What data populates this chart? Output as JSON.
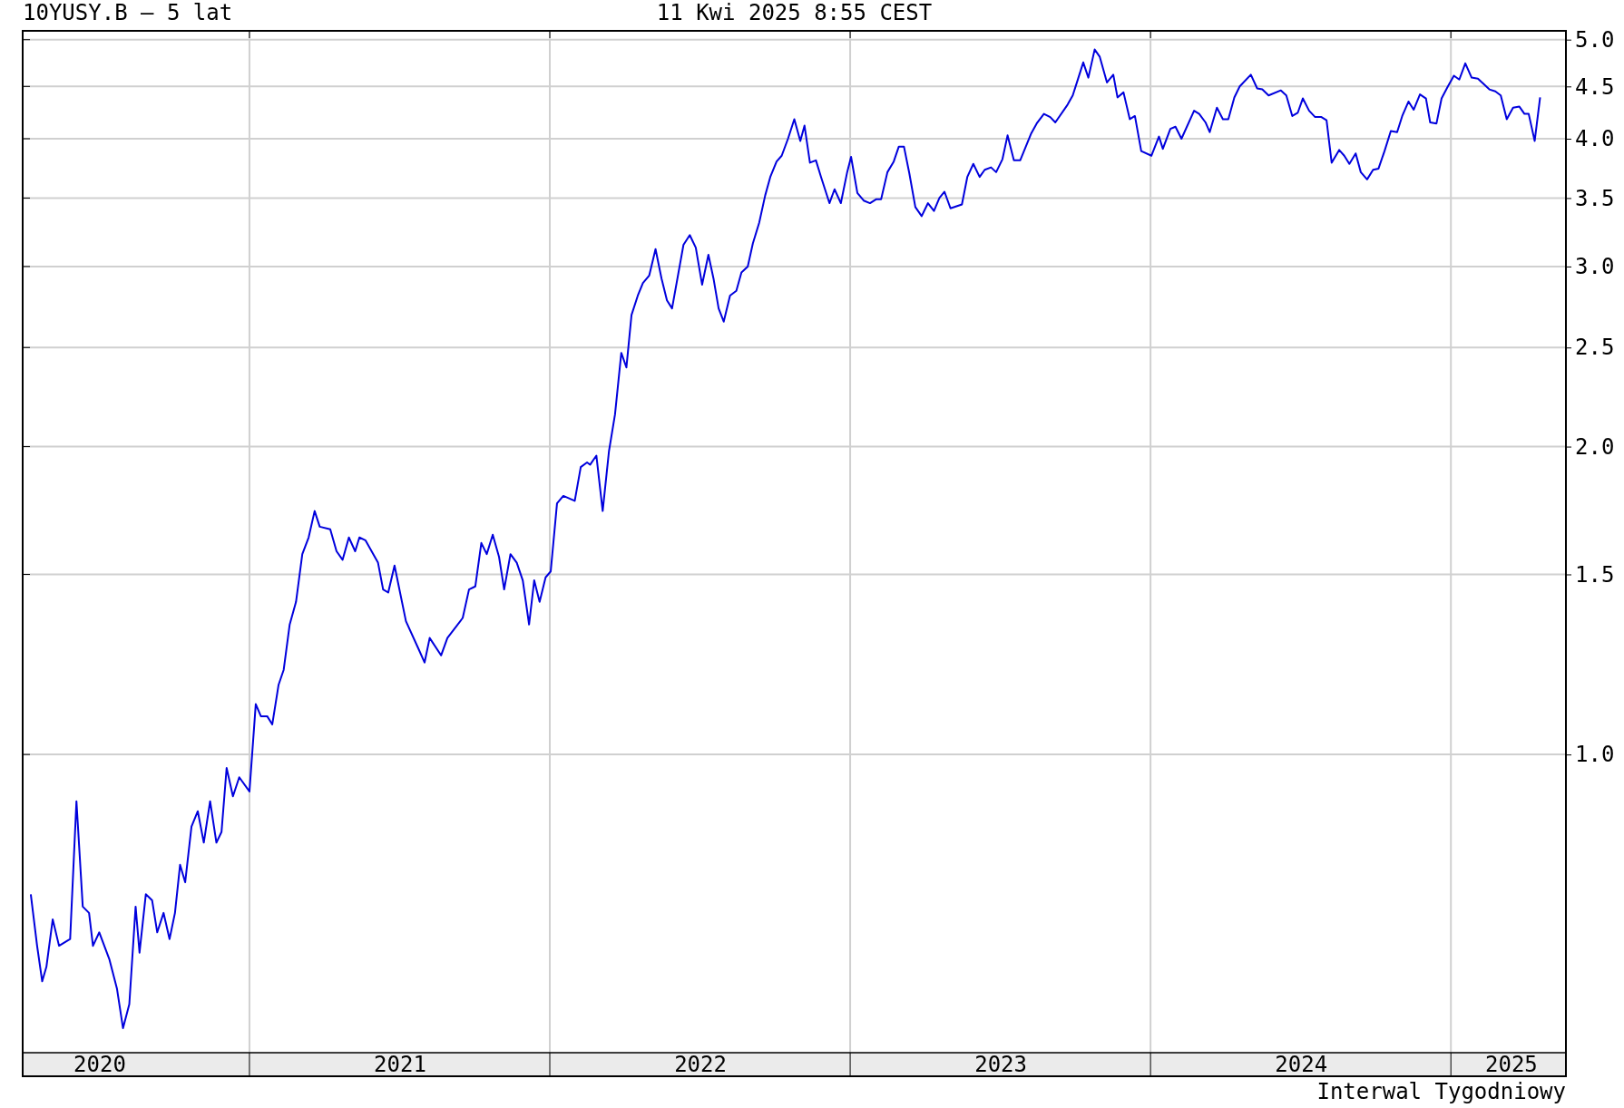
{
  "chart_data": {
    "type": "line",
    "title": "10YUSY.B – 5 lat",
    "annotations": [
      "11 Kwi 2025 8:55 CEST",
      "Interwal Tygodniowy"
    ],
    "log": true,
    "grid": true,
    "xlim": [
      2020.245,
      2025.383
    ],
    "ylim": [
      0.511,
      5.1
    ],
    "xticks": [
      {
        "value": 2020.5,
        "label": "2020"
      },
      {
        "value": 2021,
        "label": null
      },
      {
        "value": 2021.5,
        "label": "2021"
      },
      {
        "value": 2022,
        "label": null
      },
      {
        "value": 2022.5,
        "label": "2022"
      },
      {
        "value": 2023,
        "label": null
      },
      {
        "value": 2023.5,
        "label": "2023"
      },
      {
        "value": 2024,
        "label": null
      },
      {
        "value": 2024.5,
        "label": "2024"
      },
      {
        "value": 2025,
        "label": null
      },
      {
        "value": 2025.2,
        "label": "2025"
      }
    ],
    "yticks": [
      {
        "value": 1,
        "label": "1.0"
      },
      {
        "value": 1.5,
        "label": "1.5"
      },
      {
        "value": 2,
        "label": "2.0"
      },
      {
        "value": 2.5,
        "label": "2.5"
      },
      {
        "value": 3,
        "label": "3.0"
      },
      {
        "value": 3.5,
        "label": "3.5"
      },
      {
        "value": 4,
        "label": "4.0"
      },
      {
        "value": 4.5,
        "label": "4.5"
      },
      {
        "value": 5,
        "label": "5.0"
      }
    ],
    "series": [
      {
        "color": "#0000dd",
        "x": [
          2020.272,
          2020.293,
          2020.31,
          2020.324,
          2020.345,
          2020.366,
          2020.403,
          2020.424,
          2020.445,
          2020.466,
          2020.479,
          2020.5,
          2020.534,
          2020.559,
          2020.579,
          2020.6,
          2020.621,
          2020.634,
          2020.655,
          2020.676,
          2020.693,
          2020.714,
          2020.734,
          2020.752,
          2020.769,
          2020.786,
          2020.807,
          2020.828,
          2020.848,
          2020.869,
          2020.89,
          2020.907,
          2020.924,
          2020.945,
          2020.966,
          2021.0,
          2021.021,
          2021.038,
          2021.059,
          2021.076,
          2021.097,
          2021.114,
          2021.134,
          2021.155,
          2021.176,
          2021.197,
          2021.217,
          2021.234,
          2021.269,
          2021.29,
          2021.31,
          2021.331,
          2021.352,
          2021.366,
          2021.386,
          2021.428,
          2021.445,
          2021.462,
          2021.483,
          2021.521,
          2021.562,
          2021.583,
          2021.6,
          2021.638,
          2021.659,
          2021.71,
          2021.731,
          2021.752,
          2021.772,
          2021.79,
          2021.81,
          2021.831,
          2021.848,
          2021.869,
          2021.89,
          2021.91,
          2021.931,
          2021.948,
          2021.966,
          2021.986,
          2022.003,
          2022.024,
          2022.045,
          2022.083,
          2022.103,
          2022.124,
          2022.134,
          2022.155,
          2022.176,
          2022.197,
          2022.217,
          2022.238,
          2022.255,
          2022.272,
          2022.293,
          2022.31,
          2022.331,
          2022.352,
          2022.372,
          2022.39,
          2022.407,
          2022.445,
          2022.466,
          2022.486,
          2022.507,
          2022.528,
          2022.545,
          2022.562,
          2022.579,
          2022.6,
          2022.621,
          2022.638,
          2022.659,
          2022.676,
          2022.697,
          2022.717,
          2022.734,
          2022.755,
          2022.772,
          2022.793,
          2022.814,
          2022.834,
          2022.848,
          2022.866,
          2022.886,
          2022.903,
          2022.931,
          2022.948,
          2022.969,
          2022.99,
          2023.003,
          2023.024,
          2023.045,
          2023.066,
          2023.086,
          2023.103,
          2023.124,
          2023.145,
          2023.162,
          2023.179,
          2023.197,
          2023.217,
          2023.238,
          2023.259,
          2023.279,
          2023.297,
          2023.314,
          2023.334,
          2023.372,
          2023.39,
          2023.41,
          2023.431,
          2023.448,
          2023.469,
          2023.486,
          2023.507,
          2023.524,
          2023.545,
          2023.566,
          2023.603,
          2023.621,
          2023.645,
          2023.666,
          2023.683,
          2023.724,
          2023.741,
          2023.759,
          2023.776,
          2023.793,
          2023.814,
          2023.831,
          2023.855,
          2023.876,
          2023.89,
          2023.91,
          2023.931,
          2023.948,
          2023.969,
          2024.003,
          2024.028,
          2024.041,
          2024.066,
          2024.083,
          2024.103,
          2024.145,
          2024.162,
          2024.183,
          2024.197,
          2024.221,
          2024.241,
          2024.259,
          2024.279,
          2024.297,
          2024.334,
          2024.355,
          2024.372,
          2024.393,
          2024.434,
          2024.452,
          2024.472,
          2024.49,
          2024.507,
          2024.528,
          2024.548,
          2024.569,
          2024.586,
          2024.603,
          2024.628,
          2024.645,
          2024.662,
          2024.683,
          2024.7,
          2024.721,
          2024.741,
          2024.759,
          2024.779,
          2024.8,
          2024.821,
          2024.838,
          2024.859,
          2024.876,
          2024.897,
          2024.917,
          2024.931,
          2024.952,
          2024.969,
          2024.99,
          2025.01,
          2025.028,
          2025.048,
          2025.069,
          2025.09,
          2025.128,
          2025.148,
          2025.166,
          2025.186,
          2025.207,
          2025.228,
          2025.245,
          2025.259,
          2025.279,
          2025.297
        ],
        "values": [
          0.73,
          0.65,
          0.6,
          0.62,
          0.69,
          0.65,
          0.66,
          0.9,
          0.71,
          0.7,
          0.65,
          0.67,
          0.63,
          0.59,
          0.54,
          0.57,
          0.71,
          0.64,
          0.73,
          0.72,
          0.67,
          0.7,
          0.66,
          0.7,
          0.78,
          0.75,
          0.85,
          0.88,
          0.82,
          0.9,
          0.82,
          0.84,
          0.97,
          0.91,
          0.95,
          0.92,
          1.12,
          1.09,
          1.09,
          1.07,
          1.17,
          1.21,
          1.34,
          1.41,
          1.57,
          1.63,
          1.73,
          1.67,
          1.66,
          1.58,
          1.55,
          1.63,
          1.58,
          1.63,
          1.62,
          1.54,
          1.45,
          1.44,
          1.53,
          1.35,
          1.27,
          1.23,
          1.3,
          1.25,
          1.3,
          1.36,
          1.45,
          1.46,
          1.61,
          1.57,
          1.64,
          1.56,
          1.45,
          1.57,
          1.54,
          1.48,
          1.34,
          1.48,
          1.41,
          1.49,
          1.51,
          1.76,
          1.79,
          1.77,
          1.91,
          1.93,
          1.92,
          1.96,
          1.73,
          1.98,
          2.15,
          2.47,
          2.39,
          2.69,
          2.81,
          2.89,
          2.94,
          3.12,
          2.92,
          2.78,
          2.73,
          3.15,
          3.22,
          3.13,
          2.88,
          3.08,
          2.92,
          2.73,
          2.65,
          2.81,
          2.84,
          2.96,
          3.0,
          3.16,
          3.31,
          3.52,
          3.67,
          3.8,
          3.85,
          4.0,
          4.18,
          3.98,
          4.12,
          3.79,
          3.81,
          3.67,
          3.46,
          3.57,
          3.46,
          3.71,
          3.84,
          3.54,
          3.48,
          3.46,
          3.49,
          3.49,
          3.71,
          3.8,
          3.93,
          3.93,
          3.7,
          3.43,
          3.36,
          3.46,
          3.4,
          3.5,
          3.55,
          3.42,
          3.45,
          3.67,
          3.78,
          3.67,
          3.73,
          3.75,
          3.71,
          3.82,
          4.03,
          3.81,
          3.81,
          4.05,
          4.14,
          4.23,
          4.2,
          4.15,
          4.32,
          4.41,
          4.58,
          4.75,
          4.59,
          4.89,
          4.81,
          4.54,
          4.62,
          4.39,
          4.44,
          4.18,
          4.21,
          3.89,
          3.85,
          4.02,
          3.91,
          4.09,
          4.11,
          4.0,
          4.26,
          4.23,
          4.15,
          4.06,
          4.29,
          4.18,
          4.18,
          4.39,
          4.5,
          4.62,
          4.48,
          4.47,
          4.41,
          4.46,
          4.41,
          4.21,
          4.24,
          4.38,
          4.26,
          4.2,
          4.2,
          4.17,
          3.79,
          3.9,
          3.85,
          3.78,
          3.87,
          3.71,
          3.65,
          3.73,
          3.74,
          3.89,
          4.07,
          4.06,
          4.21,
          4.35,
          4.27,
          4.42,
          4.38,
          4.15,
          4.14,
          4.38,
          4.5,
          4.61,
          4.57,
          4.74,
          4.59,
          4.58,
          4.47,
          4.45,
          4.41,
          4.18,
          4.29,
          4.3,
          4.23,
          4.23,
          3.98,
          4.39
        ]
      }
    ]
  }
}
